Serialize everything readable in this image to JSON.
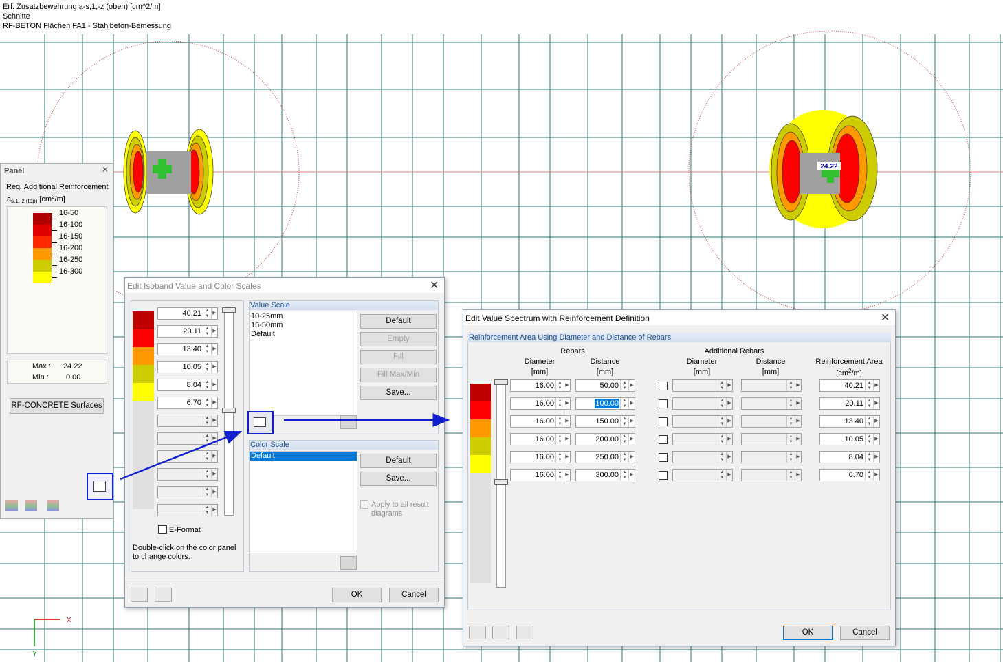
{
  "header": {
    "lines": [
      "Erf. Zusatzbewehrung a-s,1,-z (oben) [cm^2/m]",
      "Schnitte",
      "RF-BETON Flächen FA1 - Stahlbeton-Bemessung"
    ]
  },
  "model": {
    "value_label": "24.22",
    "axis_x": "X",
    "axis_y": "Y"
  },
  "panel": {
    "title": "Panel",
    "heading": "Req. Additional Reinforcement",
    "symbol": "a",
    "subscript": "s,1,-z (top)",
    "unit_prefix": "[cm",
    "unit_exp": "2",
    "unit_suffix": "/m]",
    "legend": [
      {
        "label": "16-50",
        "color": "#b00000"
      },
      {
        "label": "16-100",
        "color": "#e00000"
      },
      {
        "label": "16-150",
        "color": "#ff2a00"
      },
      {
        "label": "16-200",
        "color": "#ff9900"
      },
      {
        "label": "16-250",
        "color": "#cccc00"
      },
      {
        "label": "16-300",
        "color": "#ffff00"
      }
    ],
    "max_label": "Max :",
    "max": "24.22",
    "min_label": "Min :",
    "min": "0.00",
    "button": "RF-CONCRETE Surfaces"
  },
  "isoband": {
    "title": "Edit Isoband Value and Color Scales",
    "colors": [
      "#c00000",
      "#ff0000",
      "#ff9900",
      "#cccc00",
      "#ffff00"
    ],
    "values": [
      "40.21",
      "20.11",
      "13.40",
      "10.05",
      "8.04",
      "6.70"
    ],
    "eformat": "E-Format",
    "note": [
      "Double-click on the color panel",
      "to change colors."
    ],
    "value_scale": {
      "title": "Value Scale",
      "items": [
        "10-25mm",
        "16-50mm",
        "Default"
      ],
      "buttons": [
        "Default",
        "Empty",
        "Fill",
        "Fill Max/Min",
        "Save..."
      ]
    },
    "color_scale": {
      "title": "Color Scale",
      "items": [
        "Default"
      ],
      "buttons": [
        "Default",
        "Save..."
      ],
      "apply": [
        "Apply to all result",
        "diagrams"
      ]
    },
    "ok": "OK",
    "cancel": "Cancel"
  },
  "spectrum": {
    "title": "Edit Value Spectrum with Reinforcement Definition",
    "group": "Reinforcement Area Using Diameter and Distance of Rebars",
    "colors": [
      "#c00000",
      "#ff0000",
      "#ff9900",
      "#cccc00",
      "#ffff00"
    ],
    "rebars": "Rebars",
    "additional": "Additional Rebars",
    "diameter": "Diameter",
    "distance": "Distance",
    "mm": "[mm]",
    "area": "Reinforcement Area",
    "area_prefix": "[cm",
    "area_exp": "2",
    "area_suffix": "/m]",
    "rows": [
      {
        "diameter": "16.00",
        "distance": "50.00",
        "area": "40.21"
      },
      {
        "diameter": "16.00",
        "distance": "100.00",
        "area": "20.11"
      },
      {
        "diameter": "16.00",
        "distance": "150.00",
        "area": "13.40"
      },
      {
        "diameter": "16.00",
        "distance": "200.00",
        "area": "10.05"
      },
      {
        "diameter": "16.00",
        "distance": "250.00",
        "area": "8.04"
      },
      {
        "diameter": "16.00",
        "distance": "300.00",
        "area": "6.70"
      }
    ],
    "ok": "OK",
    "cancel": "Cancel"
  }
}
